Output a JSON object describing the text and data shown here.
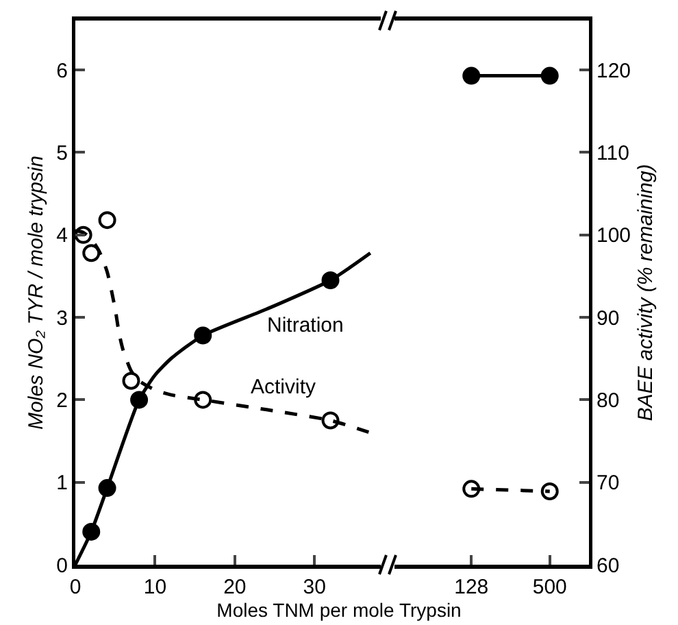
{
  "chart_data": [
    {
      "type": "line",
      "xlabel": "Moles TNM per mole Trypsin",
      "ylabel": "Moles NO₂ TYR / mole trypsin",
      "xlim": [
        0,
        39
      ],
      "xticks": [
        0,
        10,
        20,
        30
      ],
      "ylim": [
        0,
        6.6
      ],
      "yticks": [
        0,
        1,
        2,
        3,
        4,
        5,
        6
      ],
      "y2lim": [
        60,
        126
      ],
      "series": [
        {
          "name": "Nitration",
          "type": "scatter",
          "color": "#000000",
          "marker": "circle",
          "x": [
            2,
            4,
            8,
            16,
            32
          ],
          "values": [
            0.4,
            0.93,
            2.0,
            2.78,
            3.45
          ]
        },
        {
          "name": "Activity",
          "type": "scatter",
          "axis": "y2",
          "color": "#000000",
          "marker": "circle-open",
          "x": [
            1,
            2,
            4,
            7,
            16,
            32
          ],
          "values": [
            100,
            97.8,
            101.8,
            82.3,
            80,
            77.5
          ]
        },
        {
          "type": "line",
          "color": "#000000",
          "line_style": "solid",
          "marker": "none",
          "x": [
            0,
            2,
            4,
            8,
            10,
            12,
            16,
            24,
            32,
            37
          ],
          "values": [
            0,
            0.4,
            0.93,
            2.0,
            2.3,
            2.5,
            2.78,
            3.1,
            3.45,
            3.78
          ]
        },
        {
          "type": "line",
          "axis": "y2",
          "color": "#000000",
          "line_style": "dashed",
          "marker": "none",
          "x": [
            0,
            1,
            2,
            3,
            4,
            5,
            5.5,
            6,
            7,
            8,
            10,
            12,
            16,
            24,
            32,
            37
          ],
          "values": [
            100.5,
            100.3,
            99.5,
            98,
            95.5,
            91,
            88,
            86,
            83.5,
            82.3,
            81.2,
            80.6,
            80,
            78.8,
            77.5,
            76
          ]
        }
      ]
    },
    {
      "type": "line",
      "categories": [
        "128",
        "500"
      ],
      "ylim": [
        0,
        6.6
      ],
      "y2label": "BAEE activity (% remaining)",
      "y2lim": [
        60,
        126
      ],
      "y2ticks": [
        60,
        70,
        80,
        90,
        100,
        110,
        120
      ],
      "series": [
        {
          "type": "line",
          "color": "#000000",
          "marker": "circle",
          "line_style": "solid",
          "values": [
            5.93,
            5.93
          ]
        },
        {
          "type": "line",
          "axis": "y2",
          "color": "#000000",
          "marker": "circle-open",
          "line_style": "dashed",
          "values": [
            69.2,
            68.9
          ]
        }
      ]
    }
  ]
}
